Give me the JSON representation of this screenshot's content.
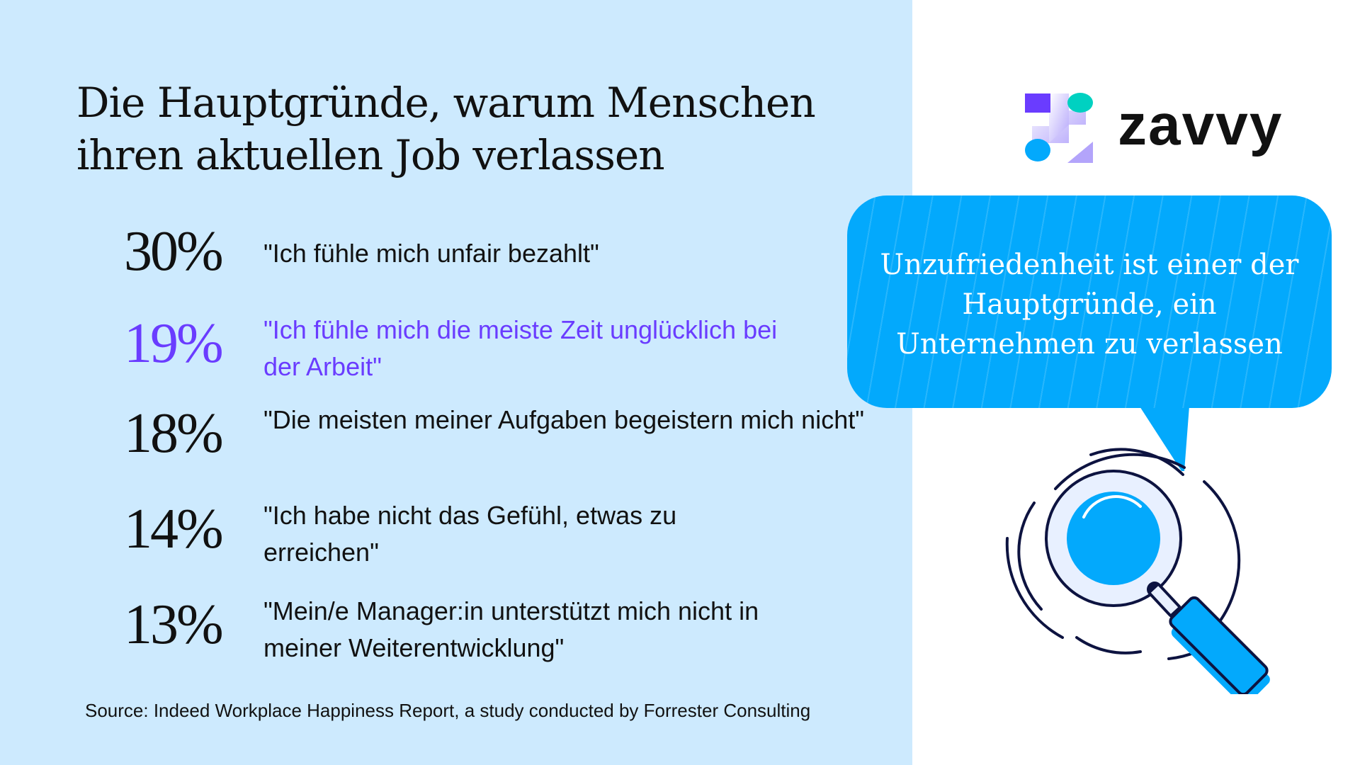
{
  "title": [
    "Die Hauptgründe, warum Menschen",
    "ihren aktuellen Job verlassen"
  ],
  "items": [
    {
      "percent": "30%",
      "quote": "\"Ich fühle mich unfair bezahlt\"",
      "highlight": false
    },
    {
      "percent": "19%",
      "quote": "\"Ich fühle mich die meiste Zeit unglücklich bei der Arbeit\"",
      "highlight": true
    },
    {
      "percent": "18%",
      "quote": "\"Die meisten meiner Aufgaben begeistern mich nicht\"",
      "highlight": false
    },
    {
      "percent": "14%",
      "quote": "\"Ich habe nicht das Gefühl, etwas zu erreichen\"",
      "highlight": false
    },
    {
      "percent": "13%",
      "quote": "\"Mein/e Manager:in unterstützt mich nicht in meiner Weiterentwicklung\"",
      "highlight": false
    }
  ],
  "source": "Source: Indeed Workplace Happiness Report, a study conducted by Forrester Consulting",
  "logo": {
    "text": "zavvy"
  },
  "bubble": {
    "lines": [
      "Unzufriedenheit ist einer der",
      "Hauptgründe, ein",
      "Unternehmen zu verlassen"
    ]
  },
  "icons": [
    "zavvy-logo-icon",
    "magnifier-icon"
  ],
  "colors": {
    "panel": "#cdeafe",
    "accent": "#6a3cff",
    "bubble": "#03a9fc",
    "teal": "#00d1c1"
  }
}
